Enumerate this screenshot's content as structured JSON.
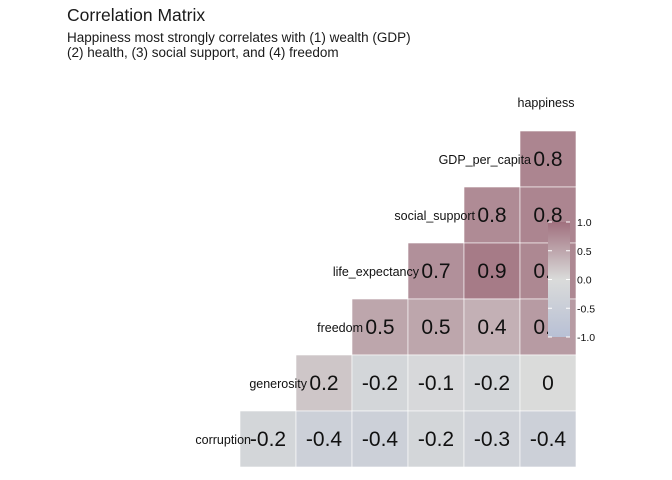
{
  "chart_data": {
    "type": "heatmap",
    "title": "Correlation Matrix",
    "subtitle": "Happiness most strongly correlates with (1) wealth (GDP)\n(2) health, (3) social support, and (4) freedom",
    "row_labels": [
      "happiness",
      "GDP_per_capita",
      "social_support",
      "life_expectancy",
      "freedom",
      "generosity",
      "corruption"
    ],
    "column_order": [
      "corruption",
      "generosity",
      "freedom",
      "life_expectancy",
      "social_support",
      "GDP_per_capita",
      "happiness"
    ],
    "cells": [
      {
        "row": "GDP_per_capita",
        "col": "happiness",
        "label": "0.8",
        "value": 0.8
      },
      {
        "row": "social_support",
        "col": "GDP_per_capita",
        "label": "0.8",
        "value": 0.75
      },
      {
        "row": "social_support",
        "col": "happiness",
        "label": "0.8",
        "value": 0.8
      },
      {
        "row": "life_expectancy",
        "col": "social_support",
        "label": "0.7",
        "value": 0.7
      },
      {
        "row": "life_expectancy",
        "col": "GDP_per_capita",
        "label": "0.9",
        "value": 0.9
      },
      {
        "row": "life_expectancy",
        "col": "happiness",
        "label": "0.8",
        "value": 0.78
      },
      {
        "row": "freedom",
        "col": "life_expectancy",
        "label": "0.5",
        "value": 0.5
      },
      {
        "row": "freedom",
        "col": "social_support",
        "label": "0.5",
        "value": 0.5
      },
      {
        "row": "freedom",
        "col": "GDP_per_capita",
        "label": "0.4",
        "value": 0.4
      },
      {
        "row": "freedom",
        "col": "happiness",
        "label": "0.6",
        "value": 0.6
      },
      {
        "row": "generosity",
        "col": "freedom",
        "label": "0.2",
        "value": 0.2
      },
      {
        "row": "generosity",
        "col": "life_expectancy",
        "label": "-0.2",
        "value": -0.2
      },
      {
        "row": "generosity",
        "col": "social_support",
        "label": "-0.1",
        "value": -0.1
      },
      {
        "row": "generosity",
        "col": "GDP_per_capita",
        "label": "-0.2",
        "value": -0.2
      },
      {
        "row": "generosity",
        "col": "happiness",
        "label": "0",
        "value": 0.0
      },
      {
        "row": "corruption",
        "col": "generosity",
        "label": "-0.2",
        "value": -0.2
      },
      {
        "row": "corruption",
        "col": "freedom",
        "label": "-0.4",
        "value": -0.4
      },
      {
        "row": "corruption",
        "col": "life_expectancy",
        "label": "-0.4",
        "value": -0.4
      },
      {
        "row": "corruption",
        "col": "social_support",
        "label": "-0.2",
        "value": -0.2
      },
      {
        "row": "corruption",
        "col": "GDP_per_capita",
        "label": "-0.3",
        "value": -0.3
      },
      {
        "row": "corruption",
        "col": "happiness",
        "label": "-0.4",
        "value": -0.4
      }
    ],
    "color_scale": {
      "low": "#b8c0d5",
      "mid": "#dadbda",
      "high": "#a0707e",
      "limits": [
        -1,
        1
      ]
    },
    "legend": {
      "position": "right",
      "ticks": [
        {
          "value": 1.0,
          "label": "1.0"
        },
        {
          "value": 0.5,
          "label": "0.5"
        },
        {
          "value": 0.0,
          "label": "0.0"
        },
        {
          "value": -0.5,
          "label": "-0.5"
        },
        {
          "value": -1.0,
          "label": "-1.0"
        }
      ]
    },
    "grid": false
  }
}
